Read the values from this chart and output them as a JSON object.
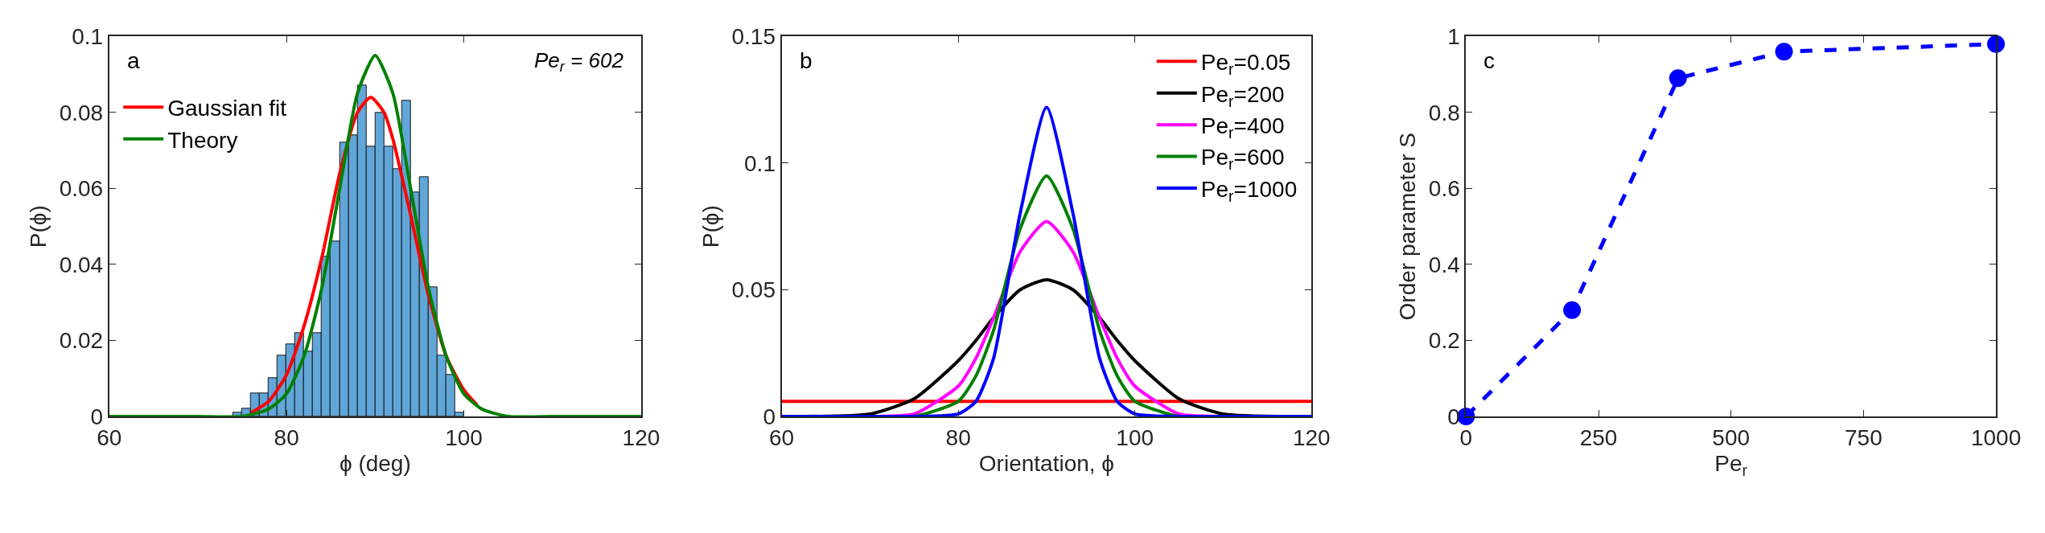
{
  "chart_data": [
    {
      "type": "histogram",
      "xlabel": "ϕ (deg)",
      "ylabel": "P(ϕ)",
      "annotations": [
        "a",
        "Pe$_{r}$ = 602"
      ],
      "bins": [
        74,
        75,
        76,
        77,
        78,
        79,
        80,
        81,
        82,
        83,
        84,
        85,
        86,
        87,
        88,
        89,
        90,
        91,
        92,
        93,
        94,
        95,
        96,
        97,
        98,
        99,
        100
      ],
      "values": [
        0.001,
        0.002,
        0.006,
        0.006,
        0.01,
        0.016,
        0.019,
        0.022,
        0.017,
        0.022,
        0.042,
        0.046,
        0.072,
        0.074,
        0.087,
        0.071,
        0.08,
        0.071,
        0.065,
        0.083,
        0.059,
        0.063,
        0.034,
        0.016,
        0.011,
        0.001
      ],
      "color": "#61a6d9",
      "series": [
        {
          "type": "line",
          "name": "Gaussian fit",
          "color": "#ff0000",
          "x": [
            76,
            78,
            80,
            82,
            84,
            86,
            88,
            89.5,
            91,
            92,
            94,
            96,
            98,
            100,
            101.5
          ],
          "values": [
            0.001,
            0.004,
            0.011,
            0.024,
            0.042,
            0.064,
            0.08,
            0.084,
            0.08,
            0.073,
            0.053,
            0.032,
            0.016,
            0.007,
            0.003
          ]
        },
        {
          "type": "line",
          "name": "Theory",
          "color": "#008000",
          "x": [
            60,
            70,
            75,
            78,
            80,
            82,
            84,
            86,
            88,
            90,
            92,
            94,
            96,
            98,
            100,
            102,
            105,
            110,
            120
          ],
          "values": [
            0.0,
            0.0,
            0.0,
            0.002,
            0.006,
            0.016,
            0.034,
            0.06,
            0.085,
            0.095,
            0.085,
            0.06,
            0.034,
            0.016,
            0.006,
            0.002,
            0.0,
            0.0,
            0.0
          ]
        }
      ],
      "xlim": [
        60,
        120
      ],
      "xticks": [
        60,
        80,
        100,
        120
      ],
      "ylim": [
        0,
        0.1
      ],
      "yticks": [
        0,
        0.02,
        0.04,
        0.06,
        0.08,
        0.1
      ],
      "legend": "top left"
    },
    {
      "type": "line",
      "xlabel": "Orientation, ϕ",
      "ylabel": "P(ϕ)",
      "annotations": [
        "b"
      ],
      "x": [
        60,
        70,
        75,
        80,
        82,
        84,
        87,
        90,
        93,
        96,
        98,
        100,
        105,
        110,
        120
      ],
      "series": [
        {
          "name": "Pe$_{r}$=0.05",
          "color": "#ff0000",
          "values": [
            0.006,
            0.006,
            0.006,
            0.006,
            0.006,
            0.006,
            0.006,
            0.006,
            0.006,
            0.006,
            0.006,
            0.006,
            0.006,
            0.006,
            0.006
          ]
        },
        {
          "name": "Pe$_{r}$=200",
          "color": "#000000",
          "values": [
            0.0,
            0.001,
            0.007,
            0.022,
            0.03,
            0.039,
            0.05,
            0.054,
            0.05,
            0.039,
            0.03,
            0.022,
            0.007,
            0.001,
            0.0
          ]
        },
        {
          "name": "Pe$_{r}$=400",
          "color": "#ff00ff",
          "values": [
            0.0,
            0.0,
            0.001,
            0.012,
            0.023,
            0.039,
            0.065,
            0.077,
            0.065,
            0.039,
            0.023,
            0.012,
            0.001,
            0.0,
            0.0
          ]
        },
        {
          "name": "Pe$_{r}$=600",
          "color": "#008000",
          "values": [
            0.0,
            0.0,
            0.0,
            0.006,
            0.016,
            0.034,
            0.074,
            0.095,
            0.074,
            0.034,
            0.016,
            0.006,
            0.0,
            0.0,
            0.0
          ]
        },
        {
          "name": "Pe$_{r}$=1000",
          "color": "#0000ff",
          "values": [
            0.0,
            0.0,
            0.0,
            0.001,
            0.006,
            0.023,
            0.08,
            0.122,
            0.08,
            0.023,
            0.006,
            0.001,
            0.0,
            0.0,
            0.0
          ]
        }
      ],
      "xlim": [
        60,
        120
      ],
      "xticks": [
        60,
        80,
        100,
        120
      ],
      "ylim": [
        0,
        0.15
      ],
      "yticks": [
        0,
        0.05,
        0.1,
        0.15
      ],
      "legend": "top right"
    },
    {
      "type": "line",
      "xlabel": "Pe$_{r}$",
      "ylabel": "Order parameter S",
      "annotations": [
        "c"
      ],
      "x": [
        0,
        200,
        400,
        600,
        1000
      ],
      "series": [
        {
          "color": "#0000ff",
          "values": [
            0,
            0.28,
            0.89,
            0.96,
            0.98
          ]
        }
      ],
      "marker": "circle",
      "line_style": "dashed",
      "xlim": [
        0,
        1000
      ],
      "xticks": [
        0,
        250,
        500,
        750,
        1000
      ],
      "ylim": [
        0,
        1
      ],
      "yticks": [
        0,
        0.2,
        0.4,
        0.6,
        0.8,
        1
      ],
      "legend": false
    }
  ]
}
